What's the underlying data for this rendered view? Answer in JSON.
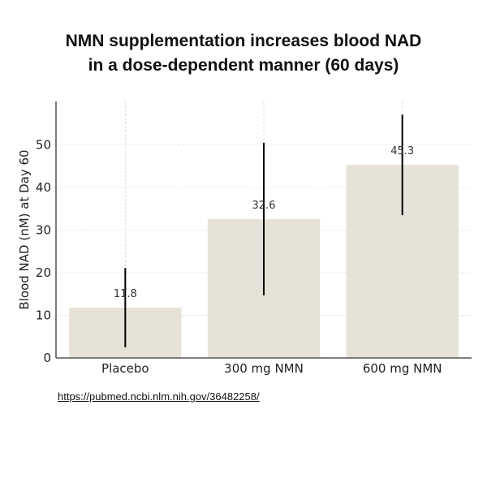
{
  "chart_data": {
    "type": "bar",
    "title_lines": [
      "NMN supplementation increases blood NAD",
      "in a dose-dependent manner (60 days)"
    ],
    "categories": [
      "Placebo",
      "300 mg NMN",
      "600 mg NMN"
    ],
    "values": [
      11.8,
      32.6,
      45.3
    ],
    "value_labels": [
      "11.8",
      "32.6",
      "45.3"
    ],
    "error": [
      9.3,
      17.9,
      11.8
    ],
    "xlabel": "",
    "ylabel": "Blood NAD (nM) at Day 60",
    "ylim": [
      0,
      60
    ],
    "yticks": [
      0,
      10,
      20,
      30,
      40,
      50
    ],
    "grid": true,
    "bar_color": "#e6e2d8",
    "error_color": "#000000"
  },
  "source_link": "https://pubmed.ncbi.nlm.nih.gov/36482258/"
}
